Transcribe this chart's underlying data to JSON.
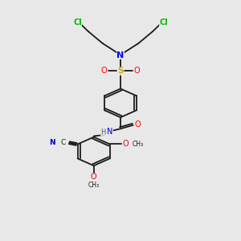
{
  "background_color": "#e8e8e8",
  "bond_color": "#1a1a1a",
  "colors": {
    "Cl": "#00bb00",
    "N": "#0000ff",
    "S": "#ccaa00",
    "O": "#ff0000",
    "C": "#1a1a1a",
    "H": "#555555",
    "CN_N": "#0000cc"
  },
  "figsize": [
    3.0,
    3.0
  ],
  "dpi": 100
}
